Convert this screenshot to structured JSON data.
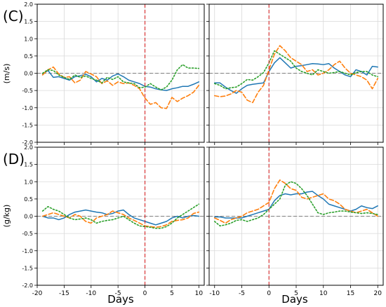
{
  "figure": {
    "panel_labels": [
      "(C)",
      "(D)"
    ],
    "ylabels": [
      "(m/s)",
      "(g/kg)"
    ],
    "xlabel": "Days"
  },
  "colors": {
    "series_blue": "#1f77b4",
    "series_orange": "#ff7f0e",
    "series_green": "#2ca02c",
    "event_line": "#d62728",
    "zero_line": "#808080",
    "grid": "#d9d9d9"
  },
  "chart_data": [
    {
      "type": "line",
      "panel": "C-left",
      "xlim": [
        -20,
        11
      ],
      "ylim": [
        -2.0,
        2.0
      ],
      "xticks": [
        -20,
        -15,
        -10,
        -5,
        0,
        5,
        10
      ],
      "yticks": [
        -2.0,
        -1.5,
        -1.0,
        -0.5,
        0.0,
        0.5,
        1.0,
        1.5,
        2.0
      ],
      "grid": true,
      "reference_lines": {
        "vertical_x": 0,
        "horizontal_y": 0
      },
      "x": [
        -19,
        -18,
        -17,
        -16,
        -15,
        -14,
        -13,
        -12,
        -11,
        -10,
        -9,
        -8,
        -7,
        -6,
        -5,
        -4,
        -3,
        -2,
        -1,
        0,
        1,
        2,
        3,
        4,
        5,
        6,
        7,
        8,
        9,
        10
      ],
      "series": [
        {
          "style": "solid",
          "values": [
            -0.03,
            0.08,
            -0.12,
            -0.1,
            -0.15,
            -0.2,
            -0.1,
            -0.07,
            -0.03,
            -0.1,
            -0.25,
            -0.15,
            -0.2,
            -0.08,
            -0.02,
            -0.1,
            -0.2,
            -0.25,
            -0.3,
            -0.38,
            -0.4,
            -0.45,
            -0.48,
            -0.5,
            -0.45,
            -0.42,
            -0.38,
            -0.38,
            -0.32,
            -0.25
          ]
        },
        {
          "style": "dashed",
          "values": [
            -0.05,
            0.1,
            0.18,
            -0.02,
            -0.12,
            -0.1,
            -0.28,
            -0.2,
            0.05,
            -0.02,
            -0.1,
            -0.3,
            -0.22,
            -0.35,
            -0.25,
            -0.3,
            -0.28,
            -0.35,
            -0.45,
            -0.72,
            -0.9,
            -0.85,
            -1.0,
            -1.02,
            -0.7,
            -0.82,
            -0.72,
            -0.65,
            -0.55,
            -0.35
          ]
        },
        {
          "style": "dotted",
          "values": [
            0.0,
            0.1,
            0.08,
            -0.05,
            -0.12,
            -0.18,
            -0.05,
            -0.12,
            -0.08,
            -0.15,
            -0.2,
            -0.28,
            -0.12,
            -0.18,
            -0.1,
            -0.25,
            -0.28,
            -0.3,
            -0.42,
            -0.4,
            -0.3,
            -0.4,
            -0.48,
            -0.4,
            -0.2,
            0.1,
            0.25,
            0.15,
            0.15,
            0.14
          ]
        }
      ]
    },
    {
      "type": "line",
      "panel": "C-right",
      "xlim": [
        -11,
        21
      ],
      "ylim": [
        -2.0,
        2.0
      ],
      "xticks": [
        -10,
        -5,
        0,
        5,
        10,
        15,
        20
      ],
      "yticks": [
        -2.0,
        -1.5,
        -1.0,
        -0.5,
        0.0,
        0.5,
        1.0,
        1.5,
        2.0
      ],
      "grid": true,
      "reference_lines": {
        "vertical_x": 0,
        "horizontal_y": 0
      },
      "x": [
        -10,
        -9,
        -8,
        -7,
        -6,
        -5,
        -4,
        -3,
        -2,
        -1,
        0,
        1,
        2,
        3,
        4,
        5,
        6,
        7,
        8,
        9,
        10,
        11,
        12,
        13,
        14,
        15,
        16,
        17,
        18,
        19,
        20
      ],
      "series": [
        {
          "style": "solid",
          "values": [
            -0.28,
            -0.28,
            -0.4,
            -0.5,
            -0.58,
            -0.45,
            -0.35,
            -0.32,
            -0.3,
            -0.28,
            0.05,
            0.3,
            0.45,
            0.3,
            0.15,
            0.2,
            0.22,
            0.25,
            0.28,
            0.27,
            0.25,
            0.28,
            0.15,
            0.05,
            -0.05,
            -0.1,
            0.1,
            0.05,
            -0.05,
            0.2,
            0.18
          ]
        },
        {
          "style": "dashed",
          "values": [
            -0.65,
            -0.68,
            -0.66,
            -0.6,
            -0.5,
            -0.55,
            -0.78,
            -0.85,
            -0.55,
            -0.35,
            0.1,
            0.55,
            0.8,
            0.65,
            0.45,
            0.35,
            0.25,
            0.05,
            0.1,
            -0.05,
            0.0,
            0.1,
            0.25,
            0.35,
            0.15,
            0.0,
            -0.05,
            -0.1,
            -0.2,
            -0.45,
            -0.15
          ]
        },
        {
          "style": "dotted",
          "values": [
            -0.3,
            -0.35,
            -0.45,
            -0.42,
            -0.4,
            -0.3,
            -0.18,
            -0.2,
            -0.1,
            0.02,
            0.3,
            0.65,
            0.55,
            0.45,
            0.35,
            0.15,
            0.05,
            0.0,
            -0.05,
            0.1,
            0.05,
            0.0,
            0.02,
            0.05,
            0.0,
            -0.05,
            0.02,
            0.05,
            0.05,
            -0.05,
            -0.1
          ]
        }
      ]
    },
    {
      "type": "line",
      "panel": "D-left",
      "xlim": [
        -20,
        11
      ],
      "ylim": [
        -2.0,
        2.0
      ],
      "xticks": [
        -20,
        -15,
        -10,
        -5,
        0,
        5,
        10
      ],
      "yticks": [
        -2.0,
        -1.5,
        -1.0,
        -0.5,
        0.0,
        0.5,
        1.0,
        1.5,
        2.0
      ],
      "grid": true,
      "reference_lines": {
        "vertical_x": 0,
        "horizontal_y": 0
      },
      "x": [
        -19,
        -18,
        -17,
        -16,
        -15,
        -14,
        -13,
        -12,
        -11,
        -10,
        -9,
        -8,
        -7,
        -6,
        -5,
        -4,
        -3,
        -2,
        -1,
        0,
        1,
        2,
        3,
        4,
        5,
        6,
        7,
        8,
        9,
        10
      ],
      "series": [
        {
          "style": "solid",
          "values": [
            0.0,
            -0.05,
            -0.05,
            -0.1,
            -0.05,
            0.05,
            0.12,
            0.15,
            0.18,
            0.15,
            0.12,
            0.1,
            0.05,
            0.08,
            0.15,
            0.18,
            0.05,
            -0.05,
            -0.1,
            -0.15,
            -0.2,
            -0.25,
            -0.2,
            -0.15,
            -0.05,
            0.0,
            -0.05,
            0.0,
            0.02,
            0.0
          ]
        },
        {
          "style": "dashed",
          "values": [
            0.0,
            0.05,
            0.1,
            0.05,
            0.0,
            -0.05,
            0.05,
            0.0,
            -0.15,
            -0.2,
            -0.05,
            0.0,
            0.05,
            0.15,
            0.1,
            0.05,
            -0.05,
            -0.12,
            -0.2,
            -0.28,
            -0.3,
            -0.32,
            -0.3,
            -0.25,
            -0.15,
            -0.12,
            -0.1,
            -0.05,
            0.08,
            0.12
          ]
        },
        {
          "style": "dotted",
          "values": [
            0.15,
            0.28,
            0.2,
            0.15,
            0.05,
            -0.05,
            -0.1,
            -0.08,
            -0.05,
            -0.1,
            -0.2,
            -0.15,
            -0.12,
            -0.1,
            -0.05,
            0.0,
            -0.1,
            -0.2,
            -0.28,
            -0.3,
            -0.32,
            -0.35,
            -0.35,
            -0.3,
            -0.2,
            -0.05,
            0.05,
            0.15,
            0.25,
            0.35
          ]
        }
      ]
    },
    {
      "type": "line",
      "panel": "D-right",
      "xlim": [
        -11,
        21
      ],
      "ylim": [
        -2.0,
        2.0
      ],
      "xticks": [
        -10,
        -5,
        0,
        5,
        10,
        15,
        20
      ],
      "yticks": [
        -2.0,
        -1.5,
        -1.0,
        -0.5,
        0.0,
        0.5,
        1.0,
        1.5,
        2.0
      ],
      "grid": true,
      "reference_lines": {
        "vertical_x": 0,
        "horizontal_y": 0
      },
      "x": [
        -10,
        -9,
        -8,
        -7,
        -6,
        -5,
        -4,
        -3,
        -2,
        -1,
        0,
        1,
        2,
        3,
        4,
        5,
        6,
        7,
        8,
        9,
        10,
        11,
        12,
        13,
        14,
        15,
        16,
        17,
        18,
        19,
        20
      ],
      "series": [
        {
          "style": "solid",
          "values": [
            -0.02,
            -0.02,
            -0.05,
            -0.05,
            -0.05,
            -0.05,
            0.0,
            0.05,
            0.1,
            0.15,
            0.2,
            0.45,
            0.6,
            0.65,
            0.62,
            0.65,
            0.65,
            0.7,
            0.72,
            0.6,
            0.5,
            0.35,
            0.3,
            0.25,
            0.2,
            0.15,
            0.2,
            0.3,
            0.25,
            0.22,
            0.3
          ]
        },
        {
          "style": "dashed",
          "values": [
            -0.05,
            -0.12,
            -0.2,
            -0.1,
            -0.05,
            0.0,
            0.1,
            0.15,
            0.2,
            0.3,
            0.4,
            0.8,
            1.05,
            0.95,
            0.8,
            0.75,
            0.55,
            0.5,
            0.55,
            0.6,
            0.65,
            0.5,
            0.45,
            0.35,
            0.2,
            0.15,
            0.1,
            0.15,
            0.2,
            0.1,
            0.0
          ]
        },
        {
          "style": "dotted",
          "values": [
            -0.15,
            -0.28,
            -0.25,
            -0.2,
            -0.12,
            -0.1,
            -0.15,
            -0.1,
            -0.05,
            0.05,
            0.2,
            0.35,
            0.5,
            0.9,
            1.0,
            0.95,
            0.8,
            0.6,
            0.35,
            0.1,
            0.05,
            0.1,
            0.12,
            0.15,
            0.15,
            0.12,
            0.1,
            0.08,
            0.1,
            0.08,
            0.05
          ]
        }
      ]
    }
  ]
}
